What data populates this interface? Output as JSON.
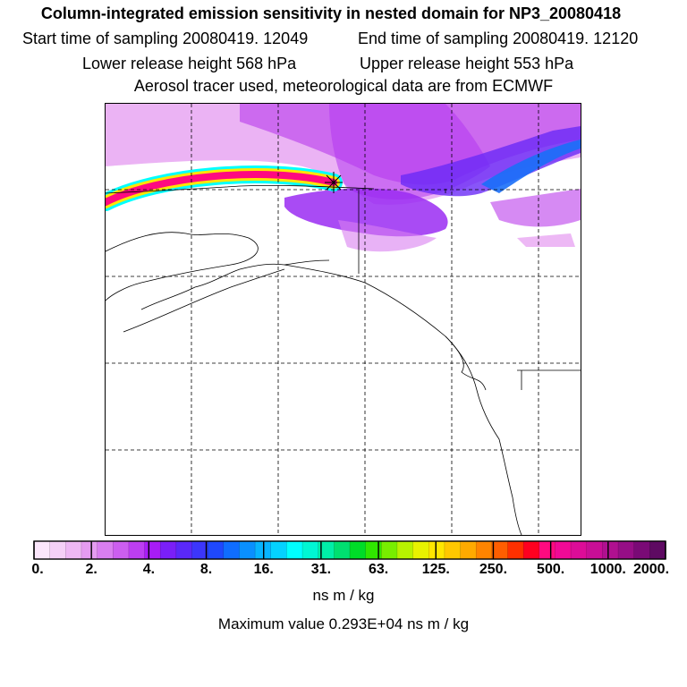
{
  "header": {
    "title": "Column-integrated emission sensitivity in nested domain for NP3_20080418",
    "start": "Start time of sampling 20080419. 12049",
    "end": "End time of sampling 20080419. 12120",
    "lower": "Lower release height  568 hPa",
    "upper": "Upper release height  553 hPa",
    "info": "Aerosol tracer used, meteorological data are from ECMWF"
  },
  "colorbar": {
    "colors": [
      "#fbe6fb",
      "#f5d0f7",
      "#eeb8f4",
      "#e59cf1",
      "#d97ef0",
      "#cc5ef0",
      "#bd3ef2",
      "#a81cf6",
      "#7a1ff7",
      "#5a28f8",
      "#3c36fb",
      "#1f48fd",
      "#0f6dff",
      "#0a90ff",
      "#07b4ff",
      "#04d2ff",
      "#00ffff",
      "#00f7d4",
      "#00efa8",
      "#00e070",
      "#00dc28",
      "#30e600",
      "#78ee00",
      "#b8f200",
      "#e8f200",
      "#ffe600",
      "#ffc800",
      "#ffaa00",
      "#ff8400",
      "#ff5e00",
      "#ff3000",
      "#ff0020",
      "#ff0a80",
      "#f00a96",
      "#dd0c98",
      "#c80e96",
      "#b01090",
      "#960e86",
      "#7a0a76",
      "#5e0a62"
    ],
    "labels": [
      "0.",
      "2.",
      "4.",
      "8.",
      "16.",
      "31.",
      "63.",
      "125.",
      "250.",
      "500.",
      "1000.",
      "2000."
    ],
    "units": "ns m / kg",
    "max_value": "Maximum value  0.293E+04 ns m / kg"
  }
}
